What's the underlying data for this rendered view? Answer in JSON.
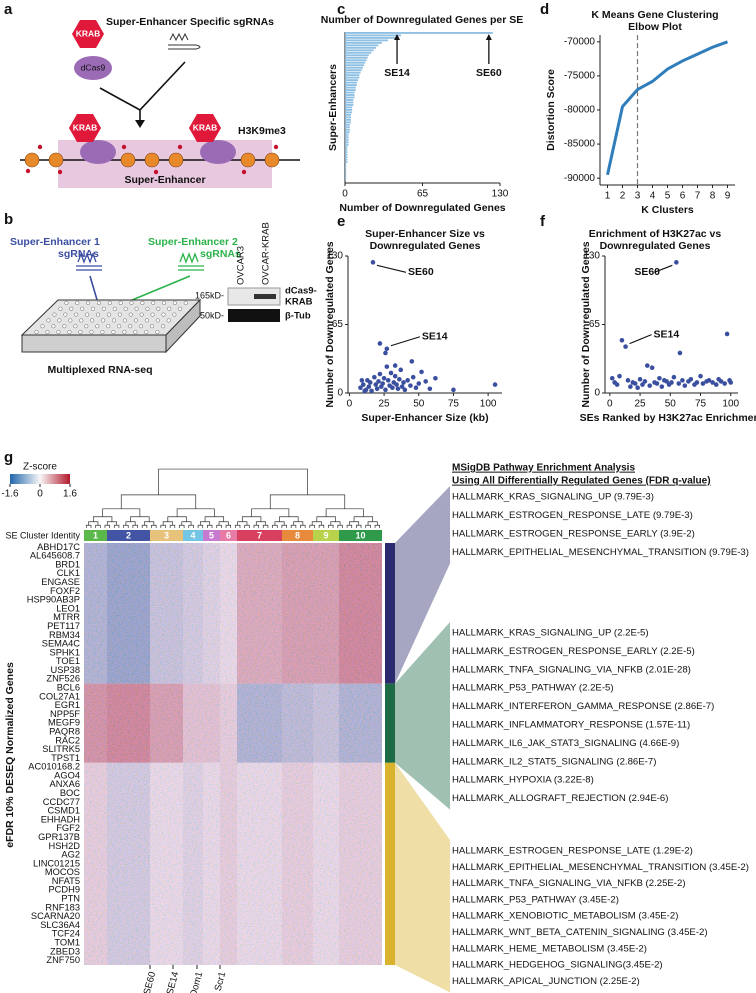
{
  "panel_labels": [
    "a",
    "b",
    "c",
    "d",
    "e",
    "f",
    "g"
  ],
  "panel_a": {
    "krab": "KRAB",
    "dcas9": "dCas9",
    "sgrnas": "Super-Enhancer Specific sgRNAs",
    "bound_krab": [
      "KRAB",
      "KRAB"
    ],
    "mark": "H3K9me3",
    "region": "Super-Enhancer"
  },
  "panel_b": {
    "se1": [
      "Super-Enhancer 1",
      "sgRNAs"
    ],
    "se2": [
      "Super-Enhancer 2",
      "sgRNAs"
    ],
    "lanes": [
      "OVCAR3",
      "OVCAR-KRAB"
    ],
    "sizes": [
      "165kD-",
      "50kD-"
    ],
    "bands": [
      [
        "dCas9-",
        "KRAB"
      ],
      "β-Tub"
    ],
    "assay": "Multiplexed RNA-seq"
  },
  "chart_data": [
    {
      "type": "hbar",
      "title": [
        "Number of Downregulated Genes per SE"
      ],
      "x_label": "Number of Downregulated Genes",
      "y_label": "Super-Enhancers",
      "color": "#8fc0e3",
      "values": [
        124,
        47,
        42,
        36,
        31,
        28,
        26,
        24,
        22,
        20,
        19,
        18,
        17,
        16,
        15,
        14,
        13,
        12,
        12,
        11,
        10,
        10,
        9,
        9,
        8,
        8,
        8,
        7,
        7,
        7,
        6,
        6,
        6,
        5,
        5,
        5,
        5,
        4,
        4,
        4,
        4,
        3,
        3,
        3,
        3,
        3,
        2,
        2,
        2,
        2,
        2,
        2,
        2,
        1,
        1,
        1,
        1,
        1,
        1,
        1
      ],
      "xlim": [
        0,
        130
      ],
      "xticks": [
        0,
        65,
        130
      ],
      "annotations": [
        "SE60",
        "SE14"
      ]
    },
    {
      "type": "line",
      "title": [
        "K Means Gene Clustering",
        "Elbow Plot"
      ],
      "x_label": "K Clusters",
      "y_label": "Distortion Score",
      "color": "#2f7dbb",
      "x": [
        1,
        2,
        3,
        4,
        5,
        6,
        7,
        8,
        9
      ],
      "values": [
        -89500,
        -79500,
        -77000,
        -75800,
        -74000,
        -72800,
        -71800,
        -70800,
        -70000
      ],
      "xlim": [
        0.5,
        9.5
      ],
      "xticks": [
        1,
        2,
        3,
        4,
        5,
        6,
        7,
        8,
        9
      ],
      "ylim": [
        -91000,
        -69000
      ],
      "yticks": [
        -90000,
        -85000,
        -80000,
        -75000,
        -70000
      ],
      "vline": 3
    },
    {
      "type": "scatter",
      "title": [
        "Super-Enhancer Size vs",
        "Downregulated Genes"
      ],
      "x_label": "Super-Enhancer Size (kb)",
      "y_label": "Number of Downregulated Genes",
      "color": "#3a4fa0",
      "x": [
        17,
        27,
        22,
        26,
        45,
        52,
        8,
        10,
        12,
        13,
        14,
        15,
        16,
        18,
        19,
        20,
        21,
        22,
        23,
        24,
        25,
        26,
        28,
        29,
        30,
        31,
        32,
        33,
        34,
        35,
        36,
        37,
        38,
        39,
        40,
        42,
        44,
        46,
        48,
        50,
        55,
        58,
        62,
        75,
        105,
        9,
        11,
        27,
        33
      ],
      "values": [
        124,
        42,
        47,
        38,
        30,
        20,
        5,
        8,
        3,
        12,
        6,
        10,
        2,
        15,
        8,
        4,
        11,
        18,
        6,
        9,
        14,
        3,
        12,
        7,
        19,
        5,
        10,
        16,
        8,
        4,
        13,
        22,
        6,
        10,
        3,
        12,
        7,
        15,
        5,
        9,
        11,
        4,
        14,
        3,
        8,
        12,
        2,
        25,
        26
      ],
      "xlim": [
        -1,
        110
      ],
      "xticks": [
        0,
        25,
        50,
        75,
        100
      ],
      "ylim": [
        0,
        130
      ],
      "yticks": [
        0,
        65,
        130
      ],
      "annotations": [
        "SE60",
        "SE14"
      ]
    },
    {
      "type": "scatter",
      "title": [
        "Enrichment of H3K27ac vs",
        "Downregulated Genes"
      ],
      "x_label": "SEs Ranked by H3K27ac Enrichment",
      "y_label": "Number of Downregulated Genes",
      "color": "#3a4fa0",
      "x": [
        55,
        13,
        10,
        58,
        97,
        2,
        4,
        6,
        8,
        15,
        17,
        19,
        21,
        23,
        25,
        27,
        29,
        31,
        33,
        35,
        37,
        39,
        41,
        43,
        45,
        47,
        49,
        51,
        53,
        57,
        60,
        62,
        65,
        67,
        70,
        72,
        75,
        77,
        80,
        82,
        85,
        88,
        90,
        92,
        95,
        99,
        100
      ],
      "values": [
        124,
        44,
        50,
        38,
        56,
        14,
        10,
        8,
        16,
        12,
        6,
        10,
        9,
        5,
        13,
        8,
        11,
        26,
        7,
        24,
        10,
        9,
        14,
        6,
        12,
        11,
        8,
        10,
        15,
        9,
        12,
        7,
        11,
        13,
        8,
        10,
        16,
        9,
        11,
        12,
        10,
        8,
        13,
        11,
        9,
        12,
        10
      ],
      "xlim": [
        -4,
        106
      ],
      "xticks": [
        0,
        25,
        50,
        75,
        100
      ],
      "ylim": [
        0,
        130
      ],
      "yticks": [
        0,
        65,
        130
      ],
      "annotations": [
        "SE60",
        "SE14"
      ]
    }
  ],
  "panel_g": {
    "colorbar": {
      "title": "Z-score",
      "lim": [
        -1.6,
        1.6
      ],
      "ticks": [
        -1.6,
        0,
        1.6
      ]
    },
    "cluster_title": "SE Cluster Identity",
    "clusters": [
      "1",
      "2",
      "3",
      "4",
      "5",
      "6",
      "7",
      "8",
      "9",
      "10"
    ],
    "cluster_colors": [
      "#5db84b",
      "#4354a4",
      "#e7c27a",
      "#72c5e4",
      "#c77bd0",
      "#e87aa6",
      "#d9405f",
      "#e88a3c",
      "#b9d24c",
      "#2f9a4a"
    ],
    "y_label": "eFDR 10% DESEQ Normalized Genes",
    "genes": [
      "ABHD17C",
      "AL645608.7",
      "BRD1",
      "CLK1",
      "ENGASE",
      "FOXF2",
      "HSP90AB3P",
      "LEO1",
      "MTRR",
      "PET117",
      "RBM34",
      "SEMA4C",
      "SPHK1",
      "TOE1",
      "USP38",
      "ZNF526",
      "BCL6",
      "COL27A1",
      "EGR1",
      "NPP5F",
      "MEGF9",
      "PAQR8",
      "RAC2",
      "SLITRK5",
      "TPST1",
      "AC010168.2",
      "AGO4",
      "ANXA6",
      "BOC",
      "CCDC77",
      "CSMD1",
      "EHHADH",
      "FGF2",
      "GPR137B",
      "HSH2D",
      "AG2",
      "LINC01215",
      "MOCOS",
      "NFAT5",
      "PCDH9",
      "PTN",
      "RNF183",
      "SCARNA20",
      "SLC36A4",
      "TCF24",
      "TOM1",
      "ZBED3",
      "ZNF750"
    ],
    "block_means": [
      [
        -0.5,
        -0.7,
        -0.3,
        -0.2,
        -0.1,
        0,
        0.4,
        0.5,
        0.5,
        0.7
      ],
      [
        0.6,
        0.7,
        0.5,
        0.2,
        0.2,
        0.1,
        -0.5,
        -0.4,
        -0.3,
        -0.5
      ],
      [
        0.1,
        -0.2,
        0,
        -0.1,
        0,
        0.1,
        0,
        0.1,
        0,
        0.1
      ]
    ],
    "samples": [
      "SE60",
      "SE14",
      "Dom1",
      "Scr1"
    ],
    "enrichment": {
      "title": "MSigDB Pathway Enrichment Analysis",
      "subtitle": "Using All Differentially Regulated Genes (FDR q-value)",
      "groups": [
        {
          "color": "#2c2a6e",
          "items": [
            "HALLMARK_KRAS_SIGNALING_UP (9.79E-3)",
            "HALLMARK_ESTROGEN_RESPONSE_LATE (9.79E-3)",
            "HALLMARK_ESTROGEN_RESPONSE_EARLY (3.9E-2)",
            "HALLMARK_EPITHELIAL_MESENCHYMAL_TRANSITION (9.79E-3)"
          ]
        },
        {
          "color": "#1d6b45",
          "items": [
            "HALLMARK_KRAS_SIGNALING_UP (2.2E-5)",
            "HALLMARK_ESTROGEN_RESPONSE_EARLY (2.2E-5)",
            "HALLMARK_TNFA_SIGNALING_VIA_NFKB (2.01E-28)",
            "HALLMARK_P53_PATHWAY (2.2E-5)",
            "HALLMARK_INTERFERON_GAMMA_RESPONSE (2.86E-7)",
            "HALLMARK_INFLAMMATORY_RESPONSE (1.57E-11)",
            "HALLMARK_IL6_JAK_STAT3_SIGNALING (4.66E-9)",
            "HALLMARK_IL2_STAT5_SIGNALING (2.86E-7)",
            "HALLMARK_HYPOXIA (3.22E-8)",
            "HALLMARK_ALLOGRAFT_REJECTION (2.94E-6)"
          ]
        },
        {
          "color": "#d9b22e",
          "items": [
            "HALLMARK_ESTROGEN_RESPONSE_LATE (1.29E-2)",
            "HALLMARK_EPITHELIAL_MESENCHYMAL_TRANSITION (3.45E-2)",
            "HALLMARK_TNFA_SIGNALING_VIA_NFKB (2.25E-2)",
            "HALLMARK_P53_PATHWAY (3.45E-2)",
            "HALLMARK_XENOBIOTIC_METABOLISM (3.45E-2)",
            "HALLMARK_WNT_BETA_CATENIN_SIGNALING  (3.45E-2)",
            "HALLMARK_HEME_METABOLISM (3.45E-2)",
            "HALLMARK_HEDGEHOG_SIGNALING(3.45E-2)",
            "HALLMARK_APICAL_JUNCTION  (2.25E-2)"
          ]
        }
      ]
    }
  }
}
